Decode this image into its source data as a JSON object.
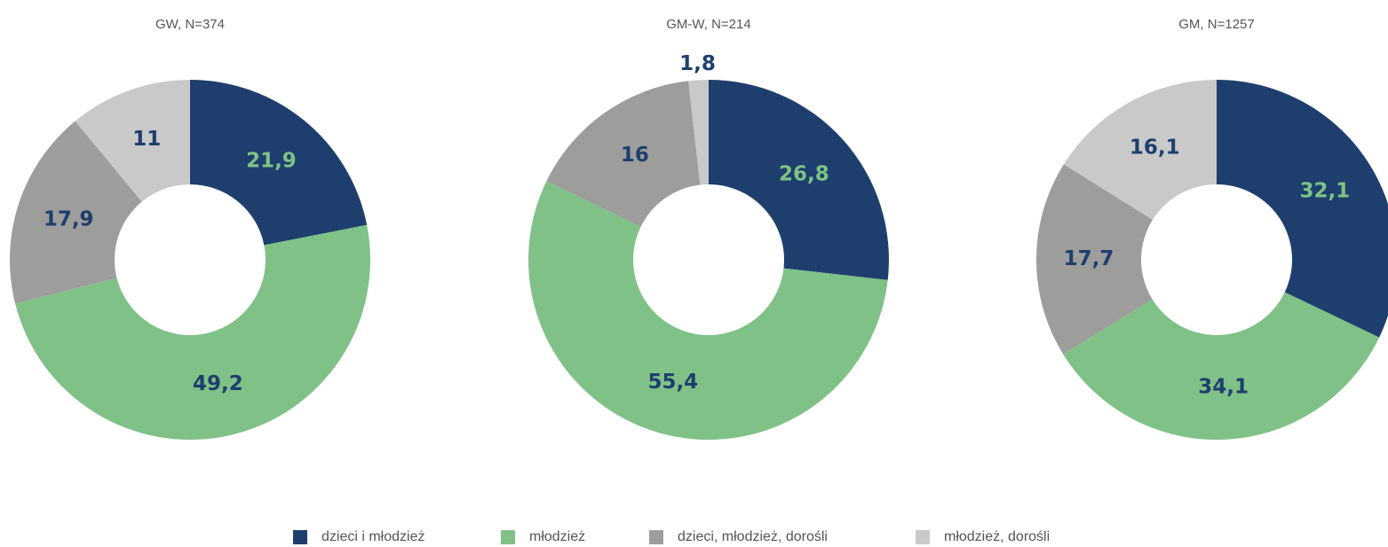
{
  "legend": {
    "categories": [
      "dzieci i młodzież",
      "młodzież",
      "dzieci, młodzież, dorośli",
      "młodzież, dorośli"
    ],
    "colors": [
      "#1e3f6e",
      "#7fc187",
      "#9d9d9b",
      "#c9c9c9"
    ],
    "label_colors": [
      "#7fc187",
      "#1e3f6e",
      "#1e3f6e",
      "#1e3f6e"
    ]
  },
  "chart_data": [
    {
      "type": "pie",
      "title": "GW, N=374",
      "values": [
        21.9,
        49.2,
        17.9,
        11
      ],
      "value_labels": [
        "21,9",
        "49,2",
        "17,9",
        "11"
      ]
    },
    {
      "type": "pie",
      "title": "GM-W, N=214",
      "values": [
        26.8,
        55.4,
        16,
        1.8
      ],
      "value_labels": [
        "26,8",
        "55,4",
        "16",
        "1,8"
      ]
    },
    {
      "type": "pie",
      "title": "GM, N=1257",
      "values": [
        32.1,
        34.1,
        17.7,
        16.1
      ],
      "value_labels": [
        "32,1",
        "34,1",
        "17,7",
        "16,1"
      ]
    }
  ]
}
